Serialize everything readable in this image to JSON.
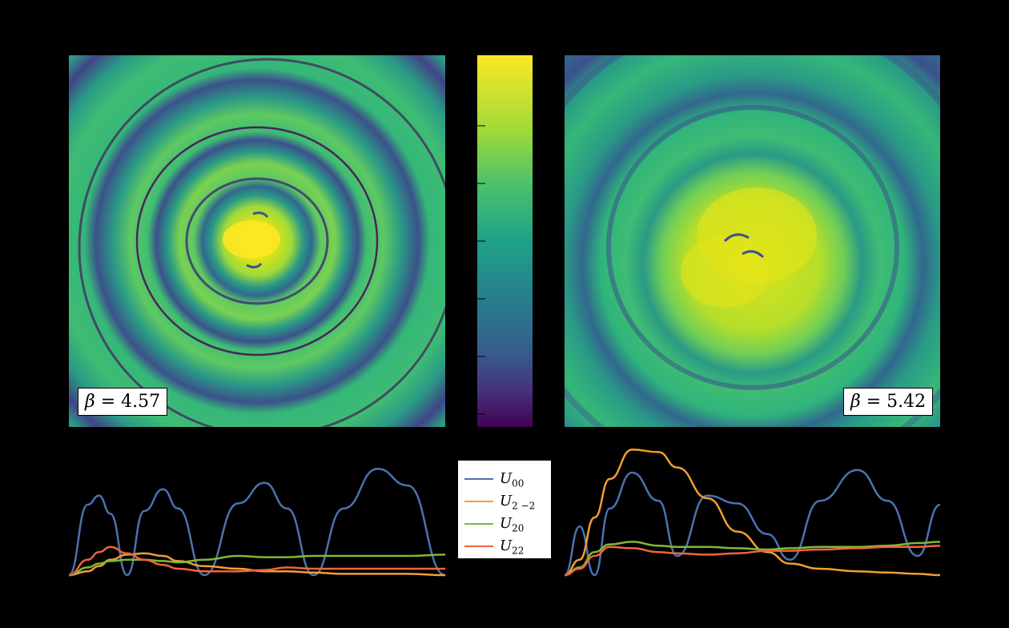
{
  "chart_data": [
    {
      "type": "heatmap",
      "panel": "top-left",
      "annotation": "β = 4.57",
      "beta_symbol": "β",
      "beta_value": "4.57",
      "rings": 4,
      "colormap": "viridis"
    },
    {
      "type": "heatmap",
      "panel": "colorbar",
      "colormap": "viridis"
    },
    {
      "type": "heatmap",
      "panel": "top-right",
      "annotation": "β = 5.42",
      "beta_symbol": "β",
      "beta_value": "5.42",
      "colormap": "viridis"
    },
    {
      "type": "line",
      "panel": "bottom-left",
      "xlim": [
        0,
        1
      ],
      "ylim": [
        0,
        1
      ],
      "x": [
        0,
        0.05,
        0.08,
        0.11,
        0.155,
        0.2,
        0.25,
        0.29,
        0.36,
        0.45,
        0.52,
        0.58,
        0.65,
        0.73,
        0.82,
        0.9,
        1.0
      ],
      "series": [
        {
          "name": "U00",
          "values": [
            0,
            0.55,
            0.62,
            0.48,
            0.0,
            0.5,
            0.67,
            0.52,
            0.0,
            0.56,
            0.72,
            0.52,
            0.0,
            0.52,
            0.83,
            0.7,
            0.0
          ]
        },
        {
          "name": "U2-2",
          "values": [
            0,
            0.03,
            0.07,
            0.12,
            0.16,
            0.17,
            0.15,
            0.11,
            0.07,
            0.05,
            0.03,
            0.03,
            0.02,
            0.01,
            0.01,
            0.01,
            0.0
          ]
        },
        {
          "name": "U20",
          "values": [
            0,
            0.06,
            0.09,
            0.11,
            0.12,
            0.12,
            0.11,
            0.1,
            0.12,
            0.15,
            0.14,
            0.14,
            0.15,
            0.15,
            0.15,
            0.15,
            0.16
          ]
        },
        {
          "name": "U22",
          "values": [
            0,
            0.12,
            0.18,
            0.22,
            0.17,
            0.12,
            0.08,
            0.05,
            0.03,
            0.03,
            0.04,
            0.06,
            0.05,
            0.05,
            0.05,
            0.05,
            0.05
          ]
        }
      ]
    },
    {
      "type": "line",
      "panel": "bottom-right",
      "xlim": [
        0,
        1
      ],
      "ylim": [
        0,
        1
      ],
      "x": [
        0,
        0.04,
        0.08,
        0.12,
        0.18,
        0.25,
        0.3,
        0.38,
        0.46,
        0.54,
        0.6,
        0.68,
        0.78,
        0.86,
        0.94,
        1.0
      ],
      "series": [
        {
          "name": "U00",
          "values": [
            0,
            0.38,
            0.0,
            0.52,
            0.8,
            0.58,
            0.15,
            0.62,
            0.56,
            0.32,
            0.12,
            0.58,
            0.82,
            0.58,
            0.15,
            0.55
          ]
        },
        {
          "name": "U2-2",
          "values": [
            0,
            0.12,
            0.45,
            0.75,
            0.98,
            0.96,
            0.84,
            0.6,
            0.34,
            0.18,
            0.09,
            0.05,
            0.03,
            0.02,
            0.01,
            0.0
          ]
        },
        {
          "name": "U20",
          "values": [
            0,
            0.06,
            0.18,
            0.24,
            0.26,
            0.23,
            0.22,
            0.22,
            0.21,
            0.2,
            0.21,
            0.22,
            0.22,
            0.23,
            0.25,
            0.26
          ]
        },
        {
          "name": "U22",
          "values": [
            0,
            0.05,
            0.15,
            0.22,
            0.21,
            0.18,
            0.17,
            0.16,
            0.17,
            0.19,
            0.19,
            0.2,
            0.21,
            0.22,
            0.22,
            0.23
          ]
        }
      ]
    }
  ],
  "legend": [
    {
      "base": "U",
      "sub": "00",
      "color": "#4C72B0"
    },
    {
      "base": "U",
      "sub": "2 −2",
      "color": "#F0A030"
    },
    {
      "base": "U",
      "sub": "20",
      "color": "#7FB935"
    },
    {
      "base": "U",
      "sub": "22",
      "color": "#F0643C"
    }
  ]
}
